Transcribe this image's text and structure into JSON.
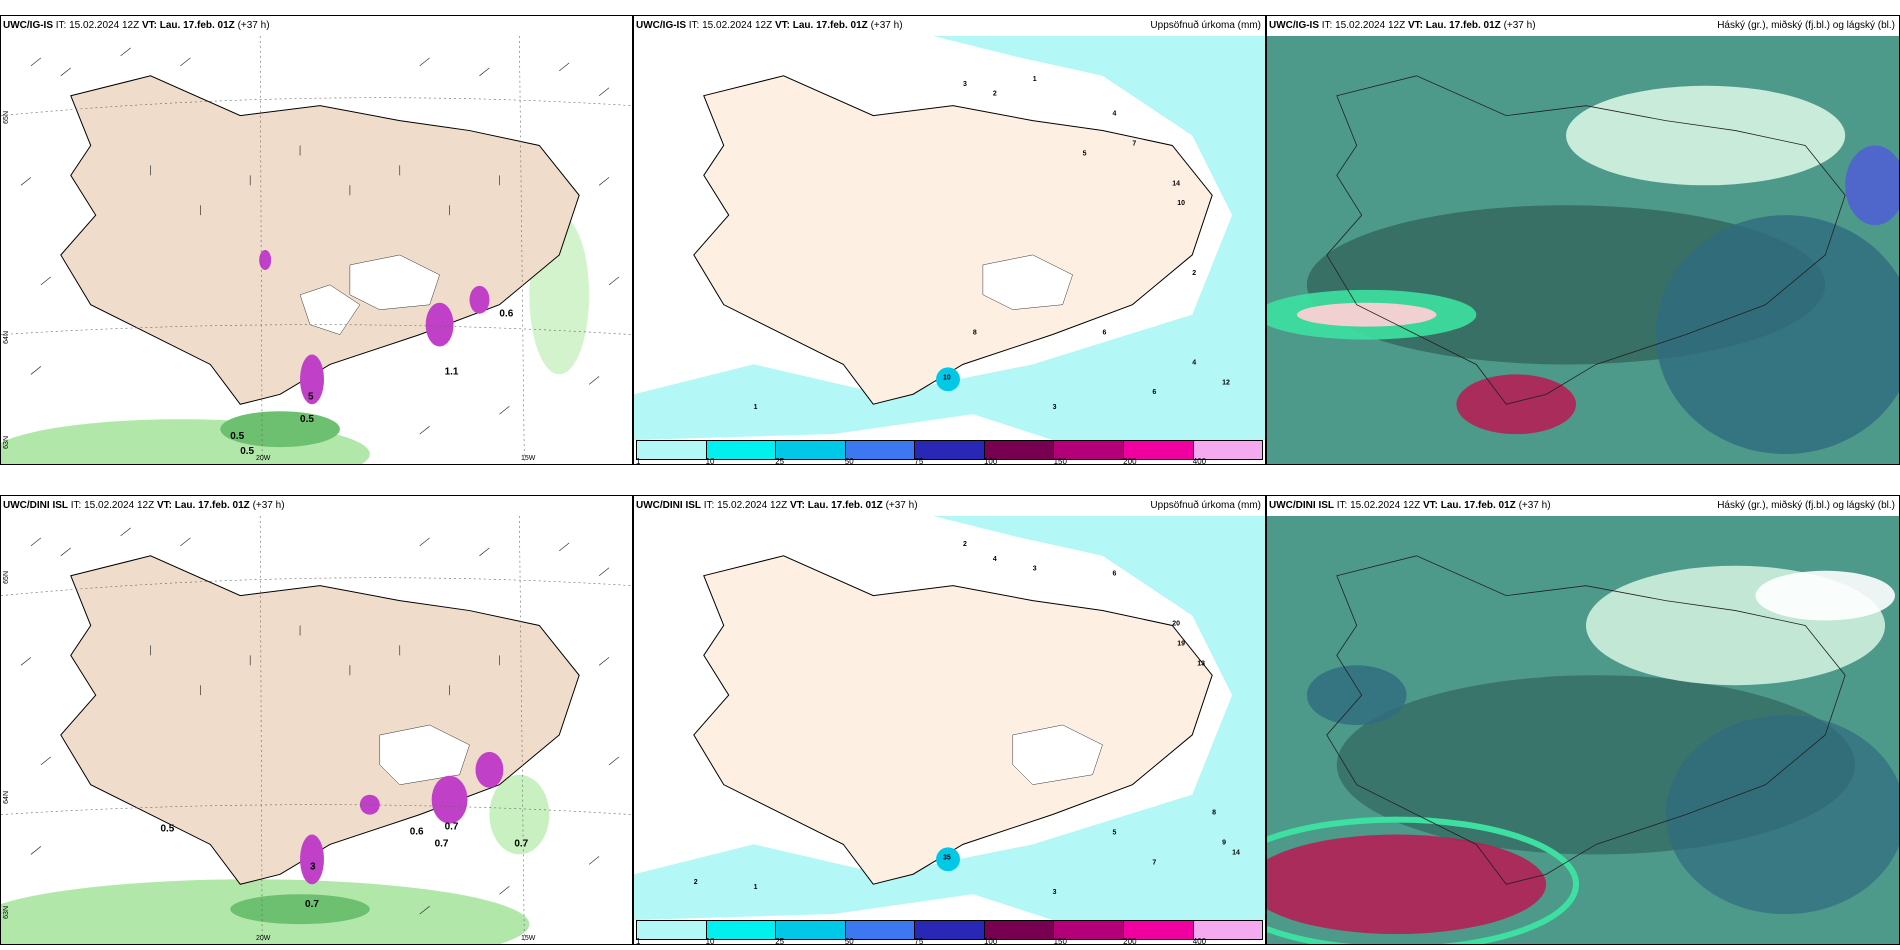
{
  "rows": [
    {
      "model": "UWC/IG-IS",
      "it_label": "IT:",
      "it": "15.02.2024 12Z",
      "vt_label": "VT:",
      "vt": "Lau. 17.feb. 01Z",
      "lead": "(+37 h)"
    },
    {
      "model": "UWC/DINI ISL",
      "it_label": "IT:",
      "it": "15.02.2024 12Z",
      "vt_label": "VT:",
      "vt": "Lau. 17.feb. 01Z",
      "lead": "(+37 h)"
    }
  ],
  "precip_title": "Uppsöfnuð úrkoma (mm)",
  "cloud_title": "Háský (gr.), miðský (fj.bl.) og lágský (bl.)",
  "lat_labels": [
    "65N",
    "64N",
    "63N"
  ],
  "lon_labels": [
    "20W",
    "15W"
  ],
  "legend": {
    "ticks": [
      "1",
      "10",
      "25",
      "50",
      "75",
      "100",
      "150",
      "200",
      "400"
    ],
    "colors": [
      "#b3f7f7",
      "#00f0f0",
      "#00c8e6",
      "#3c78f0",
      "#2828b4",
      "#780050",
      "#b40078",
      "#f000a0",
      "#f5aaf0"
    ]
  },
  "wind_panel_values": {
    "top": [
      "0.5",
      "0.5",
      "0.5",
      "1.1",
      "0.6",
      "5"
    ],
    "bottom": [
      "0.5",
      "0.6",
      "0.7",
      "0.7",
      "0.7",
      "0.7",
      "3"
    ]
  },
  "precip_values": {
    "top": [
      "3",
      "2",
      "1",
      "4",
      "5",
      "3",
      "7",
      "14",
      "10",
      "12",
      "6",
      "5",
      "4",
      "2",
      "1",
      "10",
      "8",
      "6"
    ],
    "bottom": [
      "2",
      "4",
      "3",
      "6",
      "20",
      "19",
      "13",
      "14",
      "8",
      "9",
      "7",
      "5",
      "3",
      "2",
      "1",
      "35"
    ]
  },
  "colors": {
    "land": "#efdccb",
    "precip_land": "#fdf0e2",
    "precip_sea": "#b3f7f7",
    "cloud_base": "#4d9a8a",
    "cloud_dark": "#2f5e57",
    "cloud_green": "#3de0a0",
    "cloud_light": "#d7f5e2",
    "cloud_red": "#b42054",
    "wind_green": "#a8e6a0",
    "snow_purple": "#c040c8"
  }
}
